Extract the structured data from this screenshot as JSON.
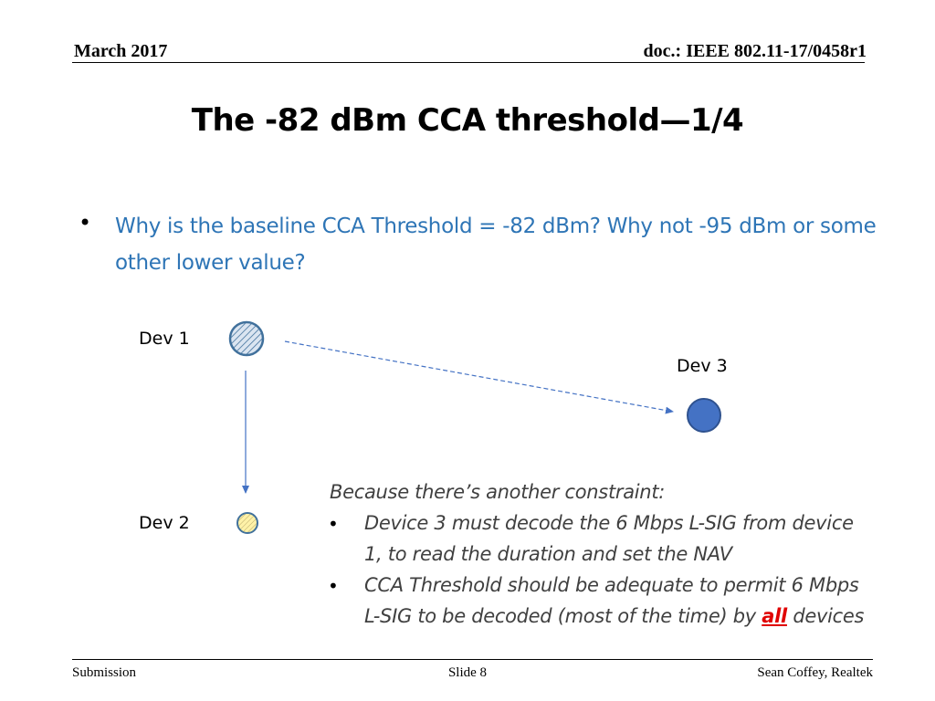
{
  "header": {
    "date": "March 2017",
    "doc_id": "doc.: IEEE 802.11-17/0458r1"
  },
  "slide": {
    "title": "The -82 dBm CCA threshold—1/4",
    "bullet": "Why is the baseline CCA Threshold = -82 dBm? Why not -95 dBm or some other lower value?"
  },
  "diagram": {
    "dev1": "Dev 1",
    "dev2": "Dev 2",
    "dev3": "Dev 3",
    "colors": {
      "dev1_fill": "#dbe5f1",
      "dev1_stroke": "#41719c",
      "dev2_fill": "#fff2a8",
      "dev2_stroke": "#41719c",
      "dev3_fill": "#4472c4",
      "dev3_stroke": "#2f528f",
      "arrow": "#4472c4"
    }
  },
  "note": {
    "intro": "Because there’s another constraint:",
    "bullets": [
      {
        "line1": "Device 3 must decode the 6 Mbps L-SIG from device",
        "line2": "1, to read the duration and set the NAV"
      },
      {
        "line1": "CCA Threshold should be adequate to permit 6 Mbps",
        "line2_before": "L-SIG to be decoded (most of the time) by ",
        "line2_emph": "all",
        "line2_after": " devices"
      }
    ],
    "bullet_glyph": "•"
  },
  "footer": {
    "left": "Submission",
    "center": "Slide 8",
    "right": "Sean Coffey, Realtek"
  }
}
